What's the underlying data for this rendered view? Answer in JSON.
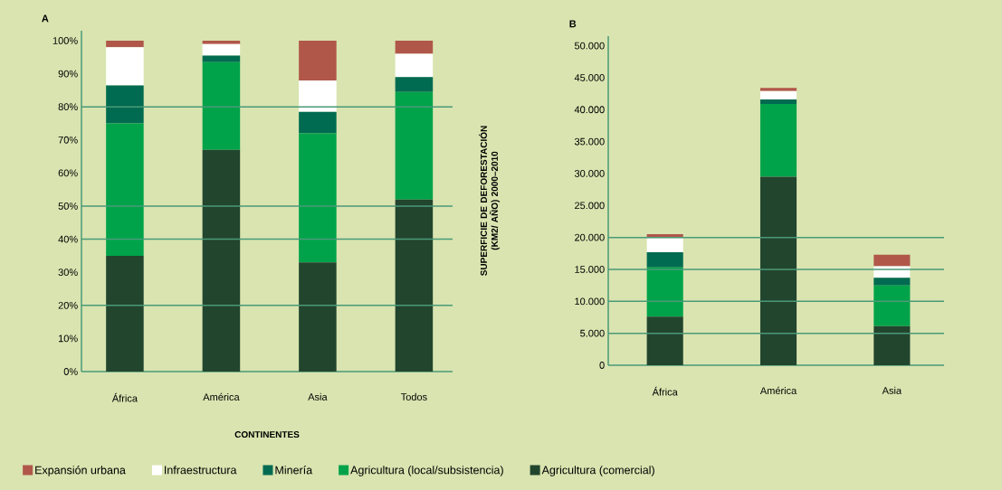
{
  "chart_data": [
    {
      "type": "bar",
      "title": "A",
      "xlabel": "CONTINENTES",
      "categories": [
        "África",
        "América",
        "Asia",
        "Todos"
      ],
      "stacked": true,
      "legend": "bottom",
      "series": [
        {
          "name": "Agricultura (comercial)",
          "color": "#22452e",
          "values": [
            35,
            67,
            33,
            52
          ]
        },
        {
          "name": "Agricultura (local/subsistencia)",
          "color": "#00a34a",
          "values": [
            40,
            26.5,
            39,
            32.5
          ]
        },
        {
          "name": "Minería",
          "color": "#006b50",
          "values": [
            11.5,
            2,
            6.5,
            4.5
          ]
        },
        {
          "name": "Infraestructura",
          "color": "#ffffff",
          "values": [
            11.5,
            3.5,
            9.5,
            7
          ]
        },
        {
          "name": "Expansión urbana",
          "color": "#b0574a",
          "values": [
            2,
            1,
            12,
            4
          ]
        }
      ],
      "ylim": [
        0,
        103
      ],
      "yticks": [
        {
          "value": 0,
          "label": "0%"
        },
        {
          "value": 10,
          "label": "10%"
        },
        {
          "value": 20,
          "label": "20%"
        },
        {
          "value": 30,
          "label": "30%"
        },
        {
          "value": 40,
          "label": "40%"
        },
        {
          "value": 50,
          "label": "50%"
        },
        {
          "value": 60,
          "label": "60%"
        },
        {
          "value": 70,
          "label": "70%"
        },
        {
          "value": 80,
          "label": "80%"
        },
        {
          "value": 90,
          "label": "90%"
        },
        {
          "value": 100,
          "label": "100%"
        }
      ],
      "ref_lines": [
        {
          "axis": "y",
          "value": 20,
          "color": "#4a9a78"
        },
        {
          "axis": "y",
          "value": 40,
          "color": "#4a9a78"
        },
        {
          "axis": "y",
          "value": 50,
          "color": "#4a9a78"
        },
        {
          "axis": "y",
          "value": 80,
          "color": "#4a9a78"
        }
      ]
    },
    {
      "type": "bar",
      "title": "B",
      "ylabel": "SUPERFICIE DE DEFORESTACIÓN (KM2/ AÑO) 2000–2010",
      "categories": [
        "África",
        "América",
        "Asia"
      ],
      "stacked": true,
      "series": [
        {
          "color": "#22452e",
          "values": [
            7600,
            29500,
            6100
          ]
        },
        {
          "color": "#00a34a",
          "values": [
            7700,
            11400,
            6400
          ]
        },
        {
          "color": "#006b50",
          "values": [
            2400,
            700,
            1200
          ]
        },
        {
          "color": "#ffffff",
          "values": [
            2200,
            1300,
            1800
          ]
        },
        {
          "color": "#b0574a",
          "values": [
            600,
            500,
            1800
          ]
        }
      ],
      "ylim": [
        0,
        51500
      ],
      "yticks": [
        {
          "value": 0,
          "label": "0"
        },
        {
          "value": 5000,
          "label": "5.000"
        },
        {
          "value": 10000,
          "label": "10.000"
        },
        {
          "value": 15000,
          "label": "15.000"
        },
        {
          "value": 20000,
          "label": "20.000"
        },
        {
          "value": 25000,
          "label": "25.000"
        },
        {
          "value": 30000,
          "label": "30.000"
        },
        {
          "value": 35000,
          "label": "35.000"
        },
        {
          "value": 40000,
          "label": "40.000"
        },
        {
          "value": 45000,
          "label": "45.000"
        },
        {
          "value": 50000,
          "label": "50.000"
        }
      ],
      "ref_lines": [
        {
          "axis": "y",
          "value": 5000,
          "color": "#4a9a78"
        },
        {
          "axis": "y",
          "value": 10000,
          "color": "#4a9a78"
        },
        {
          "axis": "y",
          "value": 15000,
          "color": "#4a9a78"
        },
        {
          "axis": "y",
          "value": 20000,
          "color": "#4a9a78"
        }
      ]
    }
  ]
}
